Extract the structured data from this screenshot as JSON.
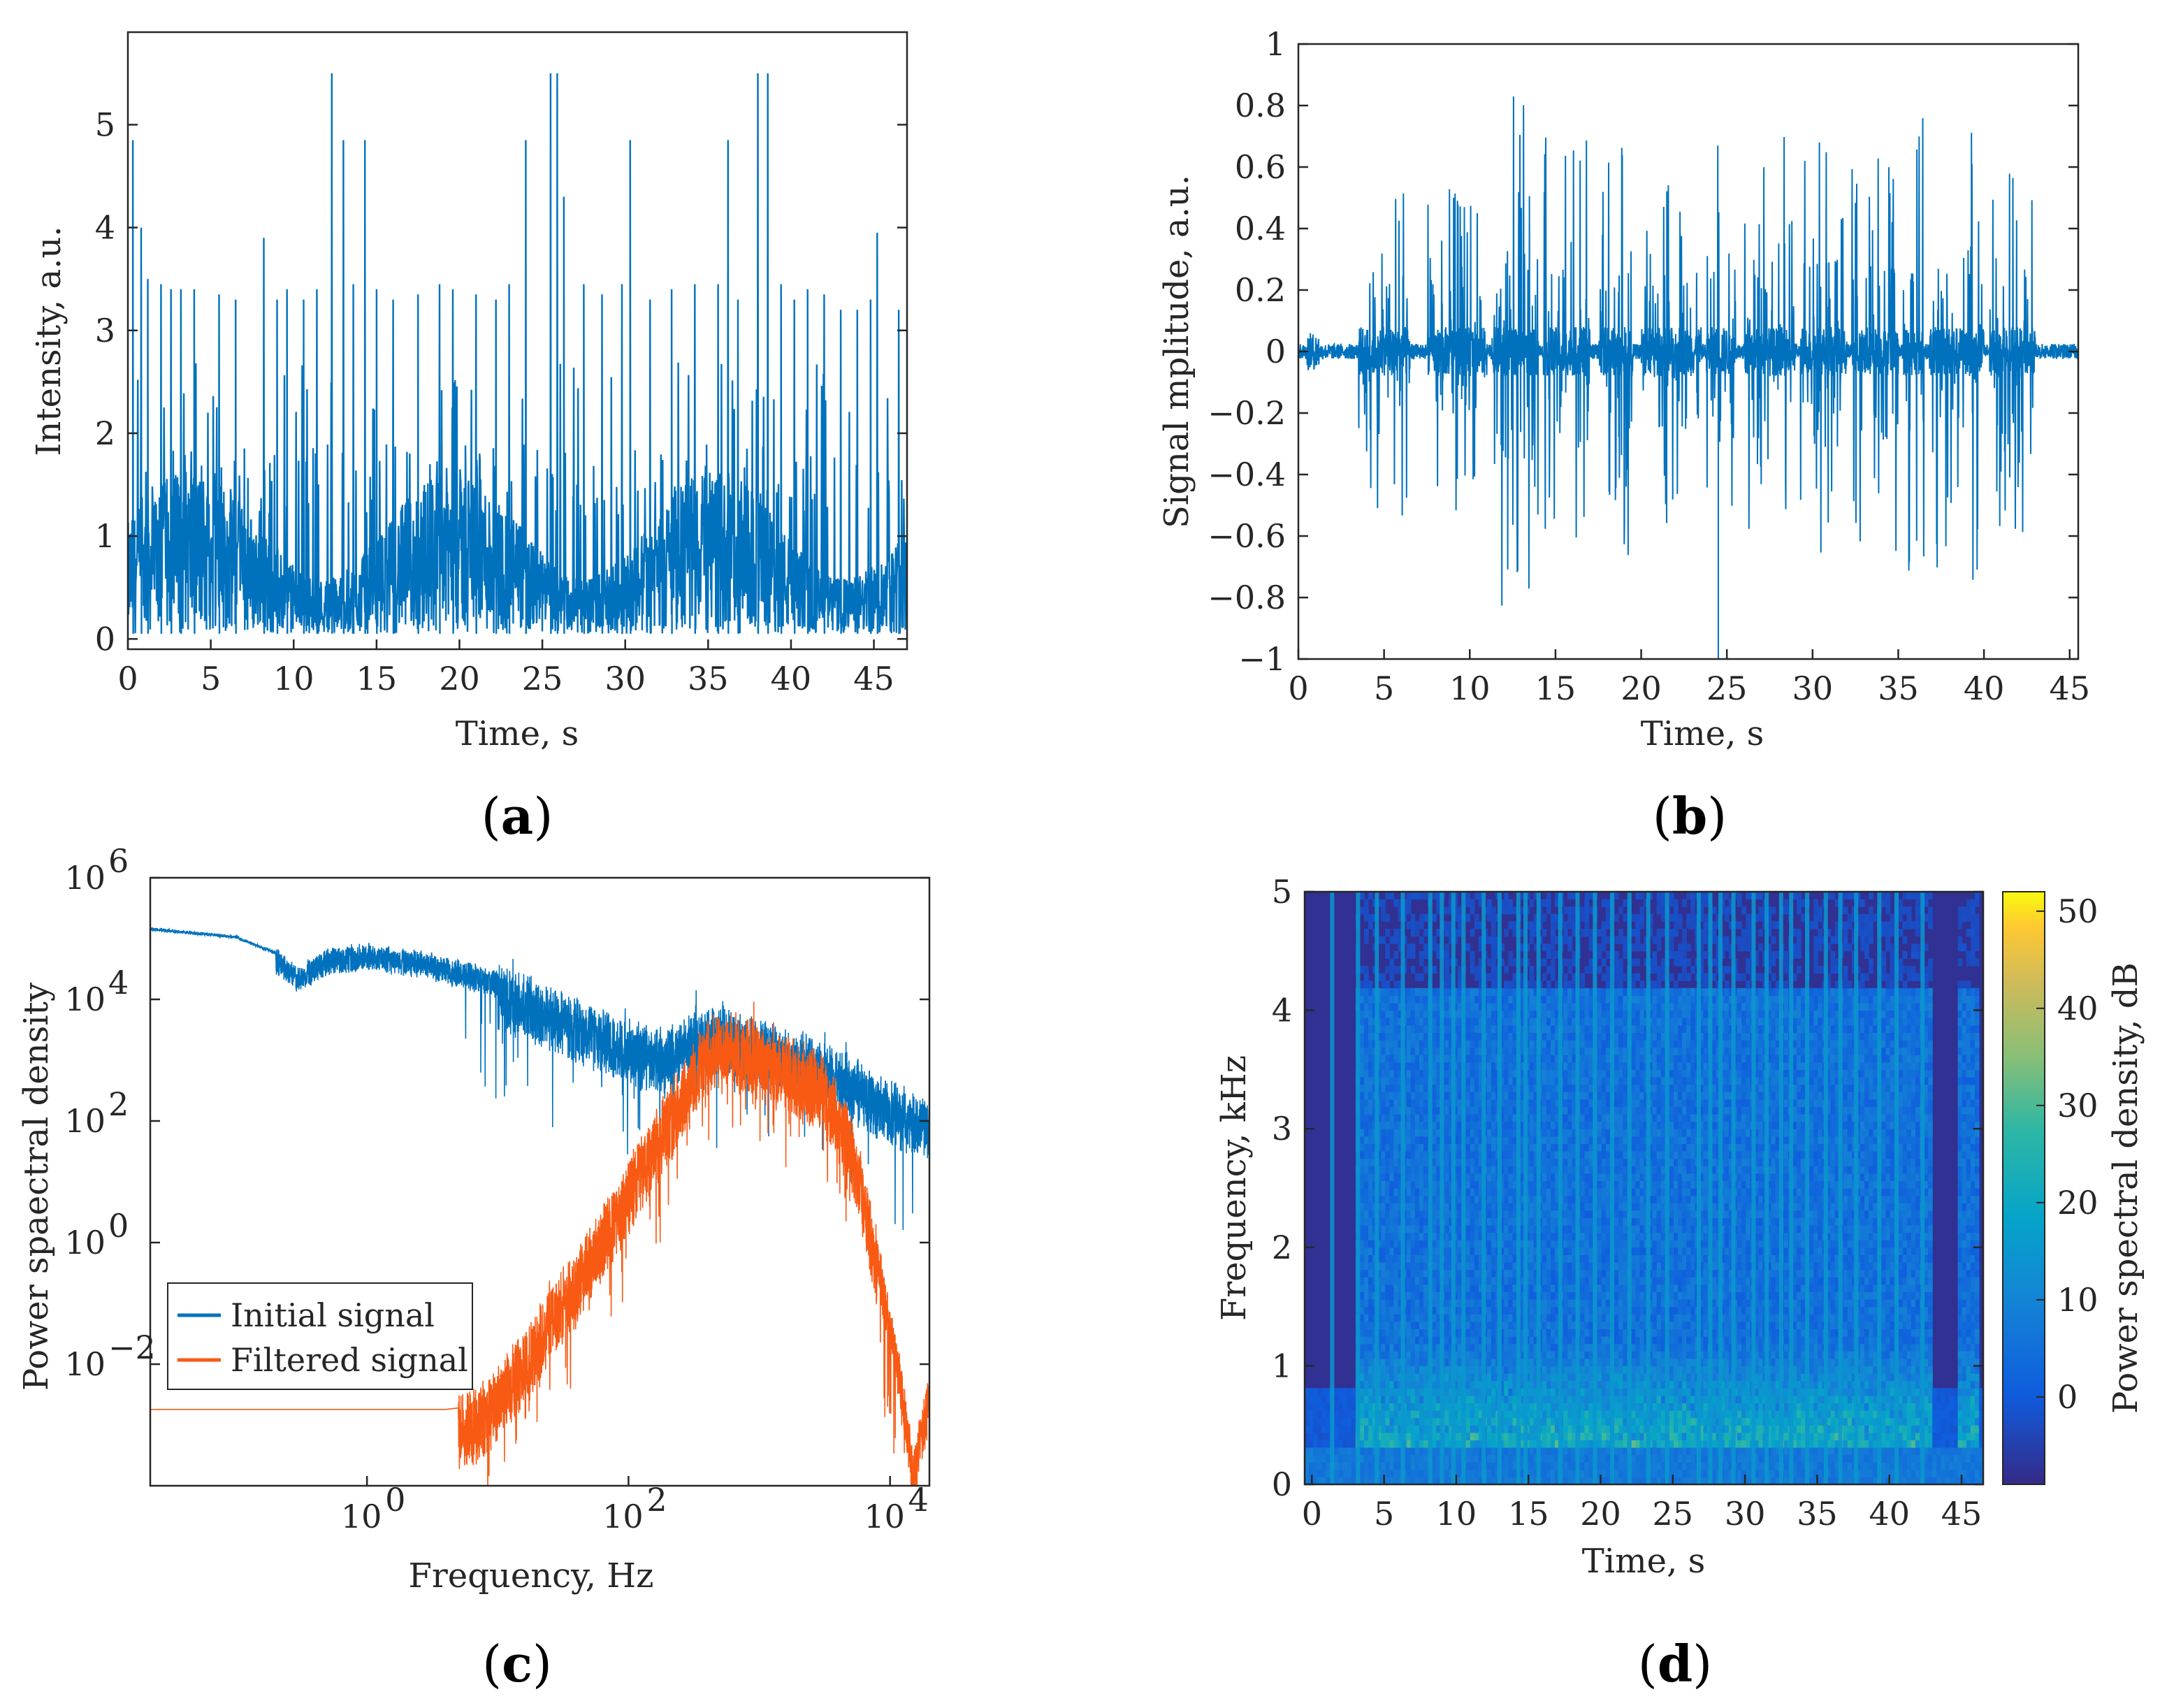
{
  "chart_data": [
    {
      "id": "a",
      "type": "line",
      "panel_label": "a",
      "xlabel": "Time, s",
      "ylabel": "Intensity, a.u.",
      "xlim": [
        0,
        47
      ],
      "ylim": [
        -0.1,
        5.9
      ],
      "xticks": [
        0,
        5,
        10,
        15,
        20,
        25,
        30,
        35,
        40,
        45
      ],
      "yticks": [
        0,
        1,
        2,
        3,
        4,
        5
      ],
      "series": [
        {
          "color": "#0072BD",
          "baseline": 0.05,
          "body_level": 0.9,
          "spikes": [
            [
              0.3,
              4.85
            ],
            [
              0.8,
              4.0
            ],
            [
              1.2,
              3.5
            ],
            [
              2.0,
              3.45
            ],
            [
              2.6,
              3.4
            ],
            [
              3.2,
              3.4
            ],
            [
              4.0,
              3.4
            ],
            [
              5.5,
              3.35
            ],
            [
              6.5,
              3.3
            ],
            [
              8.2,
              3.9
            ],
            [
              9.0,
              3.3
            ],
            [
              9.6,
              3.4
            ],
            [
              10.6,
              3.3
            ],
            [
              11.4,
              3.4
            ],
            [
              12.3,
              5.5
            ],
            [
              13.0,
              4.85
            ],
            [
              13.6,
              3.45
            ],
            [
              14.3,
              4.85
            ],
            [
              15.0,
              3.4
            ],
            [
              16.0,
              3.3
            ],
            [
              17.5,
              3.35
            ],
            [
              18.8,
              3.45
            ],
            [
              19.6,
              3.4
            ],
            [
              21.0,
              3.35
            ],
            [
              22.2,
              3.3
            ],
            [
              23.0,
              3.45
            ],
            [
              24.0,
              4.85
            ],
            [
              25.5,
              5.5
            ],
            [
              25.9,
              5.5
            ],
            [
              26.3,
              4.3
            ],
            [
              27.5,
              3.45
            ],
            [
              28.6,
              3.35
            ],
            [
              29.8,
              3.45
            ],
            [
              30.3,
              4.85
            ],
            [
              31.5,
              3.3
            ],
            [
              32.8,
              3.4
            ],
            [
              34.2,
              3.45
            ],
            [
              35.6,
              3.45
            ],
            [
              36.2,
              4.85
            ],
            [
              36.8,
              3.3
            ],
            [
              38.0,
              5.5
            ],
            [
              38.6,
              5.5
            ],
            [
              39.4,
              3.45
            ],
            [
              40.2,
              3.3
            ],
            [
              41.0,
              3.4
            ],
            [
              42.0,
              3.35
            ],
            [
              43.0,
              3.2
            ],
            [
              44.0,
              3.2
            ],
            [
              44.8,
              3.3
            ],
            [
              45.2,
              3.95
            ],
            [
              46.5,
              3.2
            ]
          ]
        }
      ]
    },
    {
      "id": "b",
      "type": "line",
      "panel_label": "b",
      "xlabel": "Time, s",
      "ylabel": "Signal mplitude, a.u.",
      "xlim": [
        0,
        45.5
      ],
      "ylim": [
        -1,
        1
      ],
      "xticks": [
        0,
        5,
        10,
        15,
        20,
        25,
        30,
        35,
        40,
        45
      ],
      "yticks": [
        -1,
        -0.8,
        -0.6,
        -0.4,
        -0.2,
        0,
        0.2,
        0.4,
        0.6,
        0.8,
        1
      ],
      "series": [
        {
          "color": "#0072BD",
          "bursts": [
            {
              "start": 3.5,
              "end": 6.5,
              "amp": 0.6
            },
            {
              "start": 7.5,
              "end": 11.0,
              "amp": 0.55
            },
            {
              "start": 11.3,
              "end": 14.0,
              "amp": 0.83
            },
            {
              "start": 14.3,
              "end": 17.0,
              "amp": 0.7
            },
            {
              "start": 17.5,
              "end": 19.5,
              "amp": 0.75
            },
            {
              "start": 20.0,
              "end": 23.5,
              "amp": 0.57
            },
            {
              "start": 23.8,
              "end": 25.5,
              "amp": 0.74
            },
            {
              "start": 26.0,
              "end": 29.0,
              "amp": 0.7
            },
            {
              "start": 29.3,
              "end": 32.0,
              "amp": 0.7
            },
            {
              "start": 32.3,
              "end": 35.0,
              "amp": 0.65
            },
            {
              "start": 35.3,
              "end": 36.5,
              "amp": 0.83
            },
            {
              "start": 36.8,
              "end": 40.0,
              "amp": 0.76
            },
            {
              "start": 40.3,
              "end": 43.0,
              "amp": 0.6
            }
          ],
          "min_spike": -1.0
        }
      ]
    },
    {
      "id": "c",
      "type": "line",
      "panel_label": "c",
      "xlabel": "Frequency, Hz",
      "ylabel": "Power spaectral density",
      "xscale": "log",
      "yscale": "log",
      "xlim": [
        0.022,
        20000
      ],
      "ylim": [
        0.0001,
        1000000
      ],
      "xticks": [
        {
          "base": "10",
          "exp": "0",
          "value": 1
        },
        {
          "base": "10",
          "exp": "2",
          "value": 100
        },
        {
          "base": "10",
          "exp": "4",
          "value": 10000
        }
      ],
      "yticks": [
        {
          "base": "10",
          "exp": "-2",
          "value": 0.01
        },
        {
          "base": "10",
          "exp": "0",
          "value": 1
        },
        {
          "base": "10",
          "exp": "2",
          "value": 100
        },
        {
          "base": "10",
          "exp": "4",
          "value": 10000
        },
        {
          "base": "10",
          "exp": "6",
          "value": 1000000
        }
      ],
      "legend_position": "lower-left",
      "series": [
        {
          "name": "Initial signal",
          "color": "#0072BD",
          "x": [
            0.022,
            0.1,
            0.2,
            0.3,
            0.5,
            1,
            3,
            10,
            30,
            100,
            200,
            300,
            500,
            1000,
            3000,
            5000,
            10000,
            20000
          ],
          "y": [
            150000,
            110000,
            60000,
            30000,
            60000,
            70000,
            50000,
            25000,
            9000,
            3000,
            2000,
            4000,
            5000,
            3000,
            1500,
            800,
            300,
            150
          ]
        },
        {
          "name": "Filtered signal",
          "color": "#F85A14",
          "x": [
            0.022,
            1,
            4,
            6,
            10,
            20,
            50,
            100,
            200,
            400,
            600,
            1000,
            2000,
            3000,
            5000,
            8000,
            12000,
            15000,
            20000
          ],
          "y": [
            0.0018,
            0.0018,
            0.0018,
            0.002,
            0.005,
            0.05,
            1,
            15,
            200,
            3000,
            4000,
            2500,
            1200,
            800,
            100,
            1,
            0.01,
            0.0003,
            0.005
          ]
        }
      ]
    },
    {
      "id": "d",
      "type": "heatmap",
      "panel_label": "d",
      "xlabel": "Time, s",
      "ylabel": "Frequency, kHz",
      "colorbar_label": "Power spectral density, dB",
      "xlim": [
        -0.5,
        46.5
      ],
      "ylim": [
        0,
        5
      ],
      "xticks": [
        0,
        5,
        10,
        15,
        20,
        25,
        30,
        35,
        40,
        45
      ],
      "yticks": [
        0,
        1,
        2,
        3,
        4,
        5
      ],
      "colorbar_ticks": [
        0,
        10,
        20,
        30,
        40,
        50
      ],
      "colorbar_range": [
        -9,
        52
      ],
      "colormap": "parula",
      "active_intervals": [
        [
          3,
          43
        ],
        [
          44.8,
          46.2
        ]
      ],
      "strong_columns": [
        1.4,
        3.2,
        4.5,
        6.3,
        8.2,
        9.0,
        9.8,
        10.5,
        11.9,
        13.0,
        14.3,
        14.8,
        15.7,
        17.2,
        18.4,
        19.6,
        20.8,
        22.0,
        23.3,
        24.6,
        26.8,
        27.6,
        28.3,
        29.2,
        30.6,
        31.5,
        32.5,
        33.2,
        34.3,
        35.6,
        36.6,
        37.7,
        39.3,
        40.5,
        42.3
      ]
    }
  ]
}
